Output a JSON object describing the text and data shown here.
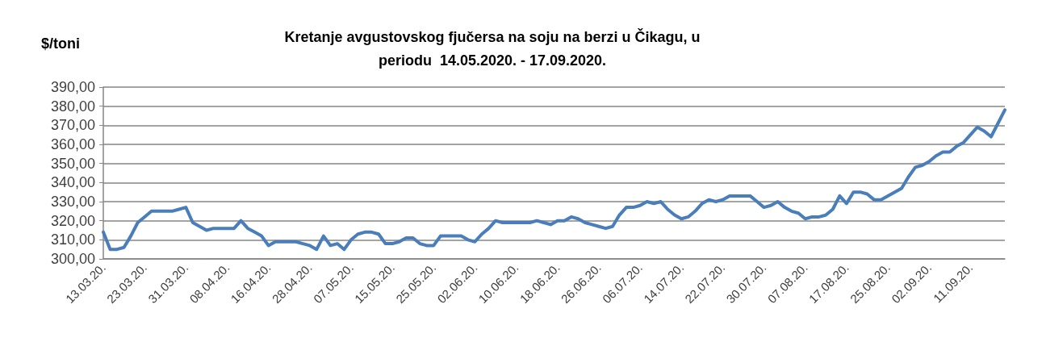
{
  "chart_data": {
    "type": "line",
    "title": "Kretanje avgustovskog fjučersa na soju na berzi u Čikagu, u\nperiodu  14.05.2020. - 17.09.2020.",
    "ylabel": "$/toni",
    "categories": [
      "13.03.20.",
      null,
      null,
      null,
      null,
      null,
      "23.03.20.",
      null,
      null,
      null,
      null,
      null,
      "31.03.20.",
      null,
      null,
      null,
      null,
      null,
      "08.04.20.",
      null,
      null,
      null,
      null,
      null,
      "16.04.20.",
      null,
      null,
      null,
      null,
      null,
      "28.04.20.",
      null,
      null,
      null,
      null,
      null,
      "07.05.20.",
      null,
      null,
      null,
      null,
      null,
      "15.05.20.",
      null,
      null,
      null,
      null,
      null,
      "25.05.20.",
      null,
      null,
      null,
      null,
      null,
      "02.06.20.",
      null,
      null,
      null,
      null,
      null,
      "10.06.20.",
      null,
      null,
      null,
      null,
      null,
      "18.06.20.",
      null,
      null,
      null,
      null,
      null,
      "26.06.20.",
      null,
      null,
      null,
      null,
      null,
      "06.07.20.",
      null,
      null,
      null,
      null,
      null,
      "14.07.20.",
      null,
      null,
      null,
      null,
      null,
      "22.07.20.",
      null,
      null,
      null,
      null,
      null,
      "30.07.20.",
      null,
      null,
      null,
      null,
      null,
      "07.08.20.",
      null,
      null,
      null,
      null,
      null,
      "17.08.20.",
      null,
      null,
      null,
      null,
      null,
      "25.08.20.",
      null,
      null,
      null,
      null,
      null,
      "02.09.20.",
      null,
      null,
      null,
      null,
      null,
      "11.09.20.",
      null,
      null,
      null,
      null,
      null
    ],
    "series": [
      {
        "color": "#4a7ebb",
        "values": [
          314,
          305,
          305,
          306,
          312,
          319,
          322,
          325,
          325,
          325,
          325,
          326,
          327,
          319,
          317,
          315,
          316,
          316,
          316,
          316,
          320,
          316,
          314,
          312,
          307,
          309,
          309,
          309,
          309,
          308,
          307,
          305,
          312,
          307,
          308,
          305,
          310,
          313,
          314,
          314,
          313,
          308,
          308,
          309,
          311,
          311,
          308,
          307,
          307,
          312,
          312,
          312,
          312,
          310,
          309,
          313,
          316,
          320,
          319,
          319,
          319,
          319,
          319,
          320,
          319,
          318,
          320,
          320,
          322,
          321,
          319,
          318,
          317,
          316,
          317,
          323,
          327,
          327,
          328,
          330,
          329,
          330,
          326,
          323,
          321,
          322,
          325,
          329,
          331,
          330,
          331,
          333,
          333,
          333,
          333,
          330,
          327,
          328,
          330,
          327,
          325,
          324,
          321,
          322,
          322,
          323,
          326,
          333,
          329,
          335,
          335,
          334,
          331,
          331,
          333,
          335,
          337,
          343,
          348,
          349,
          351,
          354,
          356,
          356,
          359,
          361,
          365,
          369,
          367,
          364,
          371,
          378
        ]
      }
    ],
    "ylim": [
      300,
      390
    ],
    "yticks": [
      {
        "value": 300,
        "label": "300,00"
      },
      {
        "value": 310,
        "label": "310,00"
      },
      {
        "value": 320,
        "label": "320,00"
      },
      {
        "value": 330,
        "label": "330,00"
      },
      {
        "value": 340,
        "label": "340,00"
      },
      {
        "value": 350,
        "label": "350,00"
      },
      {
        "value": 360,
        "label": "360,00"
      },
      {
        "value": 370,
        "label": "370,00"
      },
      {
        "value": 380,
        "label": "380,00"
      },
      {
        "value": 390,
        "label": "390,00"
      }
    ],
    "grid": "y",
    "marker": "none",
    "line_style": "solid"
  }
}
